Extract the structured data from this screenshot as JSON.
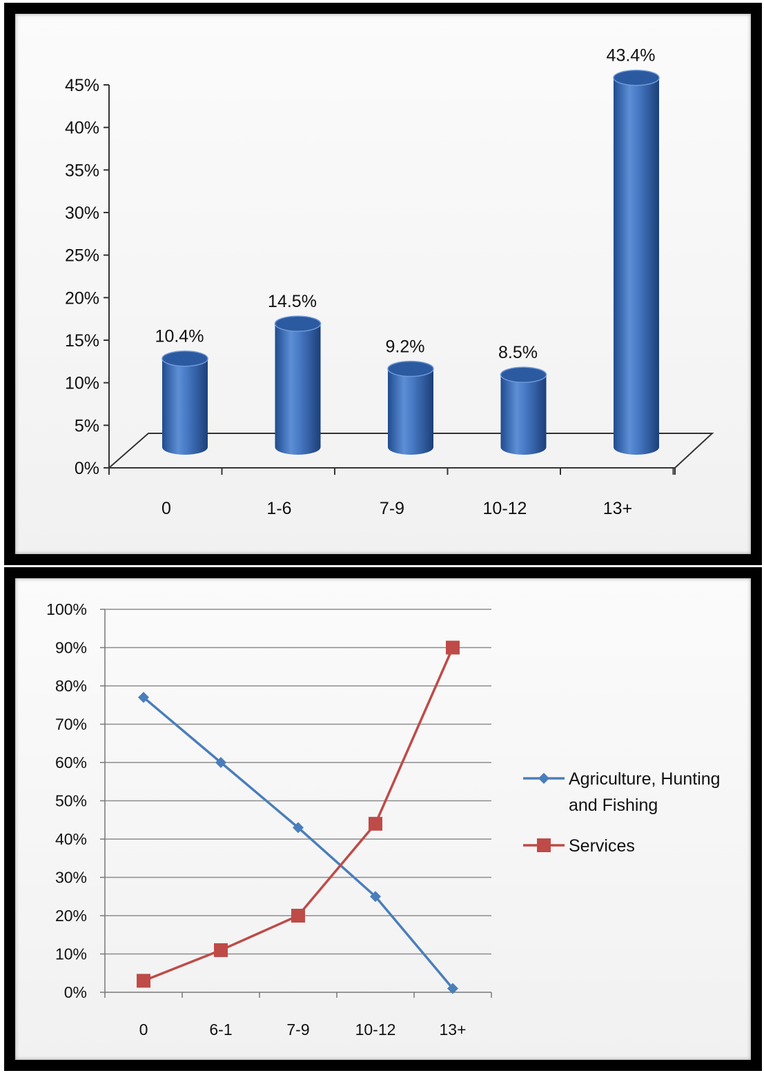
{
  "chart_data": [
    {
      "type": "bar",
      "categories": [
        "0",
        "1-6",
        "7-9",
        "10-12",
        "13+"
      ],
      "values": [
        10.4,
        14.5,
        9.2,
        8.5,
        43.4
      ],
      "data_labels": [
        "10.4%",
        "14.5%",
        "9.2%",
        "8.5%",
        "43.4%"
      ],
      "y_ticks": [
        "0%",
        "5%",
        "10%",
        "15%",
        "20%",
        "25%",
        "30%",
        "35%",
        "40%",
        "45%"
      ],
      "ylim": [
        0,
        45
      ],
      "title": "",
      "xlabel": "",
      "ylabel": "",
      "grid": false,
      "bar_color": "#3f6fb8",
      "style": "3d-cylinder"
    },
    {
      "type": "line",
      "categories": [
        "0",
        "6-1",
        "7-9",
        "10-12",
        "13+"
      ],
      "series": [
        {
          "name": "Agriculture, Hunting and Fishing",
          "legend_lines": [
            "Agriculture, Hunting",
            "and Fishing"
          ],
          "values": [
            77,
            60,
            43,
            25,
            1
          ],
          "color": "#4a7ebb",
          "marker": "diamond"
        },
        {
          "name": "Services",
          "legend_lines": [
            "Services"
          ],
          "values": [
            3,
            11,
            20,
            44,
            90
          ],
          "color": "#be4b48",
          "marker": "square"
        }
      ],
      "y_ticks": [
        "0%",
        "10%",
        "20%",
        "30%",
        "40%",
        "50%",
        "60%",
        "70%",
        "80%",
        "90%",
        "100%"
      ],
      "ylim": [
        0,
        100
      ],
      "title": "",
      "xlabel": "",
      "ylabel": "",
      "grid": true,
      "legend_position": "right"
    }
  ]
}
